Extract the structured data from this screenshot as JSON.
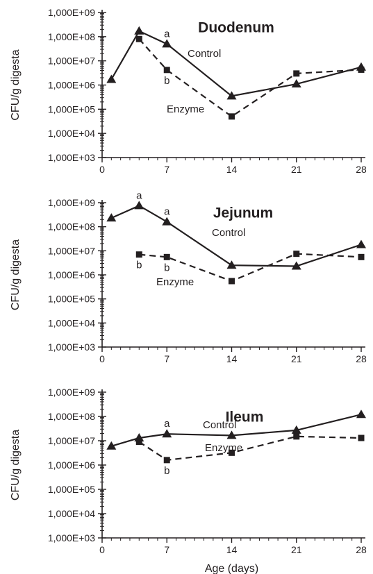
{
  "chart_data": [
    {
      "type": "line",
      "title": "Duodenum",
      "ylabel": "CFU/g digesta",
      "xlabel": "",
      "yscale": "log",
      "ylim": [
        1000,
        1000000000
      ],
      "xlim": [
        0,
        28
      ],
      "x_ticks": [
        0,
        7,
        14,
        21,
        28
      ],
      "y_ticks": [
        1000,
        10000,
        100000,
        1000000,
        10000000,
        100000000,
        1000000000
      ],
      "y_tick_labels": [
        "1,000E+03",
        "1,000E+04",
        "1,000E+05",
        "1,000E+06",
        "1,000E+07",
        "1,000E+08",
        "1,000E+09"
      ],
      "series": [
        {
          "name": "Control",
          "marker": "triangle",
          "line": "solid",
          "x": [
            1,
            4,
            7,
            14,
            21,
            28
          ],
          "y": [
            1700000,
            170000000,
            50000000,
            350000,
            1100000,
            5500000
          ]
        },
        {
          "name": "Enzyme",
          "marker": "square",
          "line": "dashed",
          "x": [
            4,
            7,
            14,
            21,
            28
          ],
          "y": [
            80000000,
            4200000,
            50000,
            3000000,
            4300000
          ]
        }
      ],
      "annotations": [
        {
          "text": "a",
          "x": 7,
          "y": 50000000,
          "position": "above"
        },
        {
          "text": "b",
          "x": 7,
          "y": 4200000,
          "position": "below"
        }
      ]
    },
    {
      "type": "line",
      "title": "Jejunum",
      "ylabel": "CFU/g digesta",
      "xlabel": "",
      "yscale": "log",
      "ylim": [
        1000,
        1000000000
      ],
      "xlim": [
        0,
        28
      ],
      "x_ticks": [
        0,
        7,
        14,
        21,
        28
      ],
      "y_ticks": [
        1000,
        10000,
        100000,
        1000000,
        10000000,
        100000000,
        1000000000
      ],
      "y_tick_labels": [
        "1,000E+03",
        "1,000E+04",
        "1,000E+05",
        "1,000E+06",
        "1,000E+07",
        "1,000E+08",
        "1,000E+09"
      ],
      "series": [
        {
          "name": "Control",
          "marker": "triangle",
          "line": "solid",
          "x": [
            1,
            4,
            7,
            14,
            21,
            28
          ],
          "y": [
            230000000,
            750000000,
            160000000,
            2500000,
            2300000,
            18000000
          ]
        },
        {
          "name": "Enzyme",
          "marker": "square",
          "line": "dashed",
          "x": [
            4,
            7,
            14,
            21,
            28
          ],
          "y": [
            7000000,
            5500000,
            550000,
            7500000,
            5500000
          ]
        }
      ],
      "annotations": [
        {
          "text": "a",
          "x": 4,
          "y": 750000000,
          "position": "above"
        },
        {
          "text": "a",
          "x": 7,
          "y": 160000000,
          "position": "above"
        },
        {
          "text": "b",
          "x": 4,
          "y": 7000000,
          "position": "below"
        },
        {
          "text": "b",
          "x": 7,
          "y": 5500000,
          "position": "below"
        }
      ]
    },
    {
      "type": "line",
      "title": "Ileum",
      "ylabel": "CFU/g digesta",
      "xlabel": "Age (days)",
      "yscale": "log",
      "ylim": [
        1000,
        1000000000
      ],
      "xlim": [
        0,
        28
      ],
      "x_ticks": [
        0,
        7,
        14,
        21,
        28
      ],
      "y_ticks": [
        1000,
        10000,
        100000,
        1000000,
        10000000,
        100000000,
        1000000000
      ],
      "y_tick_labels": [
        "1,000E+03",
        "1,000E+04",
        "1,000E+05",
        "1,000E+06",
        "1,000E+07",
        "1,000E+08",
        "1,000E+09"
      ],
      "series": [
        {
          "name": "Control",
          "marker": "triangle",
          "line": "solid",
          "x": [
            1,
            4,
            7,
            14,
            21,
            28
          ],
          "y": [
            6000000,
            13000000,
            19000000,
            16500000,
            27000000,
            120000000
          ]
        },
        {
          "name": "Enzyme",
          "marker": "square",
          "line": "dashed",
          "x": [
            4,
            7,
            14,
            21,
            28
          ],
          "y": [
            9000000,
            1600000,
            3200000,
            15000000,
            13000000
          ]
        }
      ],
      "annotations": [
        {
          "text": "a",
          "x": 7,
          "y": 19000000,
          "position": "above"
        },
        {
          "text": "b",
          "x": 7,
          "y": 1600000,
          "position": "below"
        }
      ]
    }
  ]
}
